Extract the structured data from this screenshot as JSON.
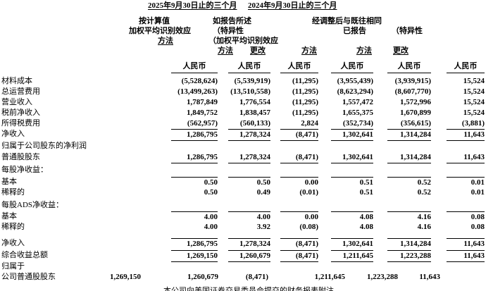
{
  "titles": {
    "period_2025": "2025年9月30日止的三个月",
    "period_2024": "2024年9月30日止的三个月"
  },
  "header": {
    "c1_line1": "按计算值",
    "c1_line2": "加权平均识别效应",
    "c1_line3": "方法",
    "c2_line1": "如报告所述",
    "c2_line2": "（特异性",
    "c2_line3": "（加权平均识别效应",
    "c2_line4": "方法",
    "c3_change": "更改",
    "group_2024": "经调整后与既往相同",
    "c4_line1": "已报告",
    "c4_line2": "方法",
    "c5_line1": "（特异性",
    "c5_line2": "方法",
    "c6_change": "更改",
    "currency": "人民币"
  },
  "table": {
    "rows": [
      {
        "label": "材料成本",
        "values": [
          "(5,528,624)",
          "(5,539,919)",
          "(11,295)",
          "(3,955,439)",
          "(3,939,915)",
          "15,524"
        ],
        "gap": 4
      },
      {
        "label": "总运营费用",
        "values": [
          "(13,499,263)",
          "(13,510,558)",
          "(11,295)",
          "(8,623,294)",
          "(8,607,770)",
          "15,524"
        ]
      },
      {
        "label": "营业收入",
        "values": [
          "1,787,849",
          "1,776,554",
          "(11,295)",
          "1,557,472",
          "1,572,996",
          "15,524"
        ]
      },
      {
        "label": "税前净收入",
        "values": [
          "1,849,752",
          "1,838,457",
          "(11,295)",
          "1,655,375",
          "1,670,899",
          "15,524"
        ]
      },
      {
        "label": "所得税费用",
        "values": [
          "(562,957)",
          "(560,133)",
          "2,824",
          "(352,734)",
          "(356,615)",
          "(3,881)"
        ]
      },
      {
        "label": "净收入",
        "values": [
          "1,286,795",
          "1,278,324",
          "(8,471)",
          "1,302,641",
          "1,314,284",
          "11,643"
        ],
        "rule": "both"
      },
      {
        "label": "归属于公司股东的净利润",
        "values": [
          "",
          "",
          "",
          "",
          "",
          ""
        ],
        "gap": 2
      },
      {
        "label": "普通股股东",
        "values": [
          "1,286,795",
          "1,278,324",
          "(8,471)",
          "1,302,641",
          "1,314,284",
          "11,643"
        ],
        "rule": "below",
        "gap": 1
      },
      {
        "label": "每股净收益：",
        "values": [
          "",
          "",
          "",
          "",
          "",
          ""
        ],
        "gap": 3
      },
      {
        "label": "基本",
        "values": [
          "0.50",
          "0.50",
          "0.00",
          "0.51",
          "0.52",
          "0.01"
        ],
        "rule": "above",
        "gap": 2
      },
      {
        "label": "稀释的",
        "values": [
          "0.50",
          "0.49",
          "(0.01)",
          "0.51",
          "0.52",
          "0.01"
        ]
      },
      {
        "label": "每股ADS净收益：",
        "values": [
          "",
          "",
          "",
          "",
          "",
          ""
        ],
        "gap": 3
      },
      {
        "label": "基本",
        "values": [
          "4.00",
          "4.00",
          "0.00",
          "4.08",
          "4.16",
          "0.08"
        ],
        "rule": "above",
        "gap": 1
      },
      {
        "label": "稀释的",
        "values": [
          "4.00",
          "3.92",
          "(0.08)",
          "4.08",
          "4.16",
          "0.08"
        ]
      },
      {
        "label": "净收入",
        "values": [
          "1,286,795",
          "1,278,324",
          "(8,471)",
          "1,302,641",
          "1,314,284",
          "11,643"
        ],
        "rule": "above",
        "gap": 8
      },
      {
        "label": "综合收益总额",
        "values": [
          "1,269,150",
          "1,260,679",
          "(8,471)",
          "1,211,645",
          "1,223,288",
          "11,643"
        ],
        "rule": "both",
        "gap": 2
      },
      {
        "label": "归属于",
        "values": [
          "",
          "",
          "",
          "",
          "",
          ""
        ],
        "gap": 1
      },
      {
        "label": "公司普通股股东",
        "values": [
          "1,269,150",
          "1,260,679",
          "(8,471)",
          "1,211,645",
          "1,223,288",
          "11,643"
        ],
        "shifted": true
      }
    ]
  },
  "footer": {
    "note": "本公司向美国证券交易委员会提交的财务报表附注"
  }
}
